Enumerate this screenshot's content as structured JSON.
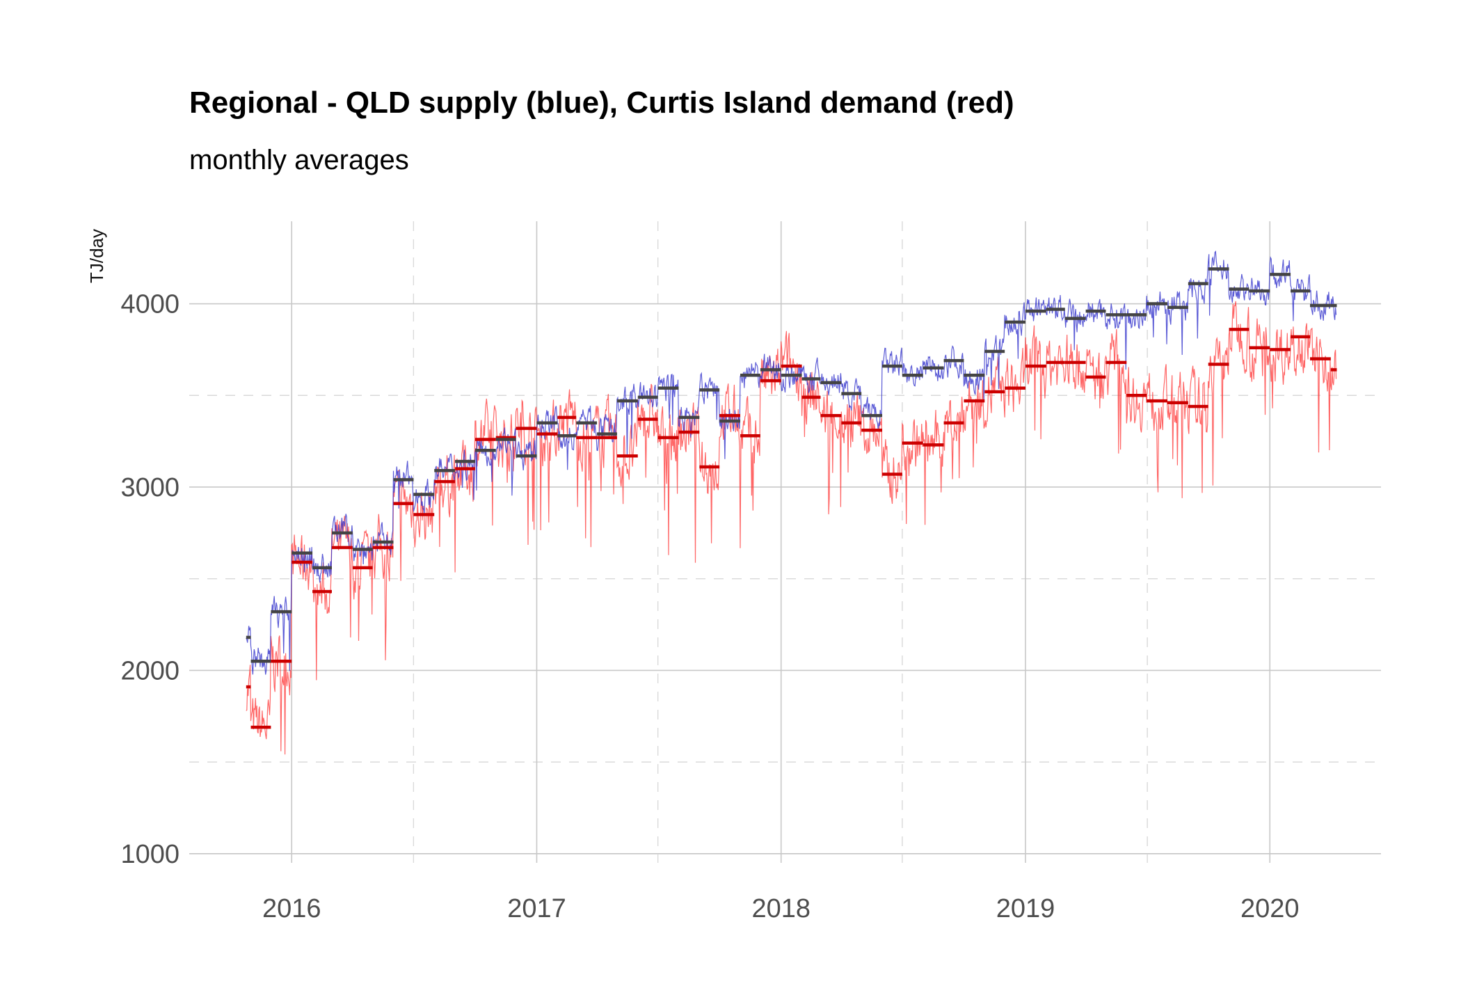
{
  "chart_data": {
    "type": "line",
    "title": "Regional - QLD supply (blue), Curtis Island demand (red)",
    "subtitle": "monthly averages",
    "xlabel": "",
    "ylabel": "TJ/day",
    "xlim": [
      "2015-08-01",
      "2020-06-15"
    ],
    "ylim": [
      950,
      4450
    ],
    "x_ticks": [
      "2016",
      "2017",
      "2018",
      "2019",
      "2020"
    ],
    "y_ticks": [
      1000,
      2000,
      3000,
      4000
    ],
    "grid": true,
    "colors": {
      "supply": "#3333cc",
      "demand": "#ff3333",
      "supply_avg": "#444444",
      "demand_avg": "#cc0000"
    },
    "months": [
      "2015-10",
      "2015-11",
      "2015-12",
      "2016-01",
      "2016-02",
      "2016-03",
      "2016-04",
      "2016-05",
      "2016-06",
      "2016-07",
      "2016-08",
      "2016-09",
      "2016-10",
      "2016-11",
      "2016-12",
      "2017-01",
      "2017-02",
      "2017-03",
      "2017-04",
      "2017-05",
      "2017-06",
      "2017-07",
      "2017-08",
      "2017-09",
      "2017-10",
      "2017-11",
      "2017-12",
      "2018-01",
      "2018-02",
      "2018-03",
      "2018-04",
      "2018-05",
      "2018-06",
      "2018-07",
      "2018-08",
      "2018-09",
      "2018-10",
      "2018-11",
      "2018-12",
      "2019-01",
      "2019-02",
      "2019-03",
      "2019-04",
      "2019-05",
      "2019-06",
      "2019-07",
      "2019-08",
      "2019-09",
      "2019-10",
      "2019-11",
      "2019-12",
      "2020-01",
      "2020-02",
      "2020-03",
      "2020-04"
    ],
    "series": [
      {
        "key": "supply_avg",
        "values": [
          2180,
          2050,
          2320,
          2640,
          2560,
          2750,
          2660,
          2700,
          3040,
          2960,
          3090,
          3140,
          3200,
          3260,
          3170,
          3350,
          3280,
          3350,
          3290,
          3470,
          3490,
          3540,
          3380,
          3530,
          3360,
          3610,
          3640,
          3610,
          3590,
          3570,
          3510,
          3390,
          3660,
          3610,
          3650,
          3690,
          3610,
          3740,
          3900,
          3960,
          3970,
          3920,
          3960,
          3940,
          3940,
          4000,
          3980,
          4110,
          4190,
          4080,
          4070,
          4160,
          4070,
          3990,
          3990
        ]
      },
      {
        "key": "demand_avg",
        "values": [
          1910,
          1690,
          2050,
          2590,
          2430,
          2670,
          2560,
          2670,
          2910,
          2850,
          3030,
          3100,
          3260,
          3270,
          3320,
          3290,
          3380,
          3270,
          3270,
          3170,
          3370,
          3270,
          3300,
          3110,
          3390,
          3280,
          3580,
          3660,
          3490,
          3390,
          3350,
          3310,
          3070,
          3240,
          3230,
          3350,
          3470,
          3520,
          3540,
          3660,
          3680,
          3680,
          3600,
          3680,
          3500,
          3470,
          3460,
          3440,
          3670,
          3860,
          3760,
          3750,
          3820,
          3700,
          3640
        ]
      }
    ]
  }
}
